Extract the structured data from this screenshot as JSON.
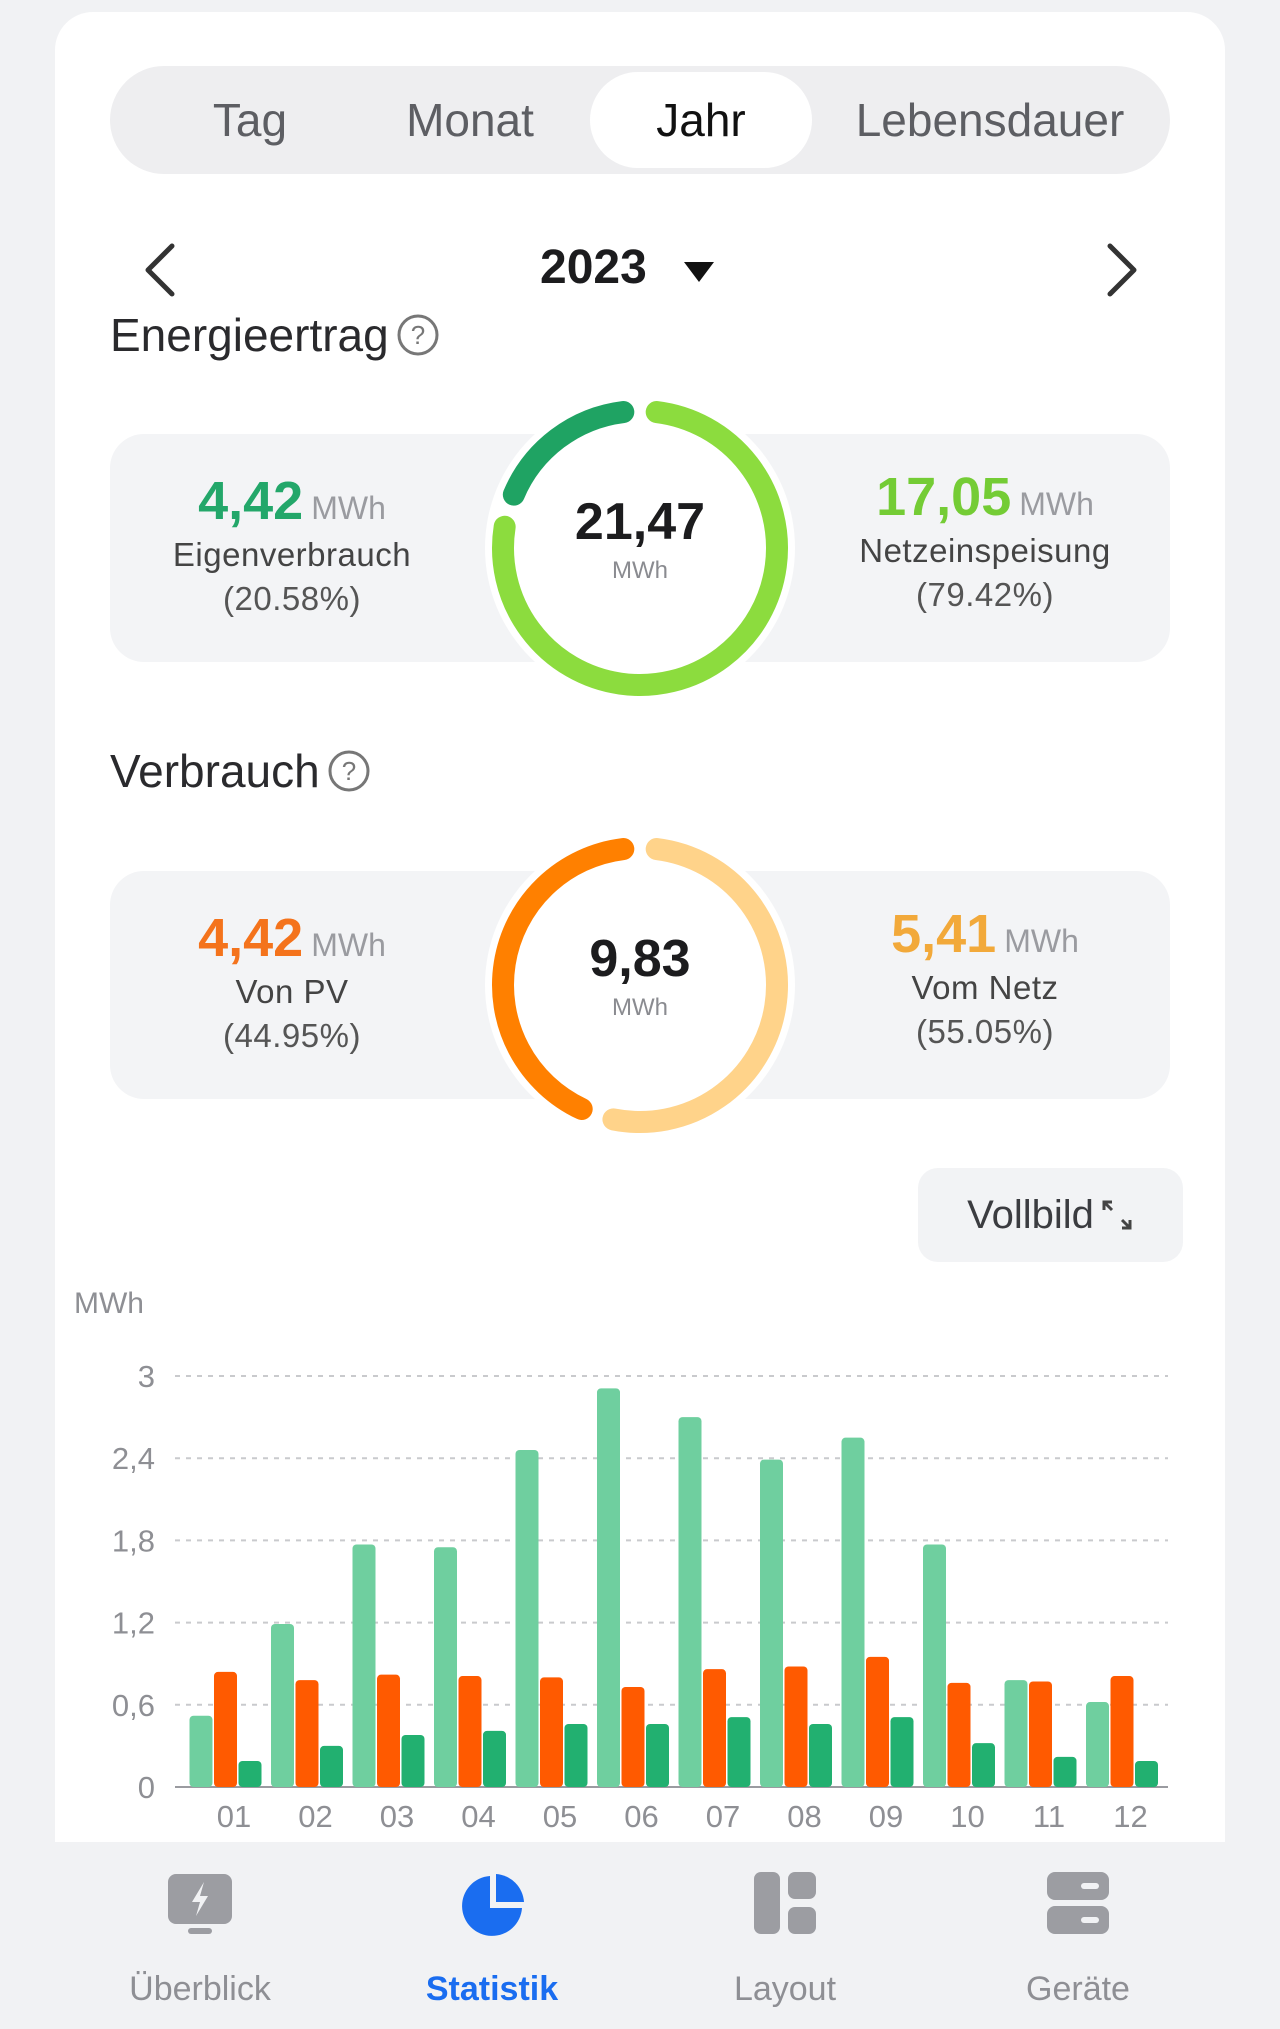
{
  "tabs": [
    {
      "label": "Tag",
      "active": false
    },
    {
      "label": "Monat",
      "active": false
    },
    {
      "label": "Jahr",
      "active": true
    },
    {
      "label": "Lebensdauer",
      "active": false
    }
  ],
  "period": {
    "year": "2023"
  },
  "energy_yield": {
    "title": "Energieertrag",
    "total": "21,47",
    "total_unit": "MWh",
    "left": {
      "value": "4,42",
      "unit": "MWh",
      "label": "Eigenverbrauch",
      "percent": "(20.58%)",
      "color": "#23a76a"
    },
    "right": {
      "value": "17,05",
      "unit": "MWh",
      "label": "Netzeinspeisung",
      "percent": "(79.42%)",
      "color": "#74cc35"
    },
    "share_left": 0.2058
  },
  "consumption": {
    "title": "Verbrauch",
    "total": "9,83",
    "total_unit": "MWh",
    "left": {
      "value": "4,42",
      "unit": "MWh",
      "label": "Von PV",
      "percent": "(44.95%)",
      "color": "#f4731c"
    },
    "right": {
      "value": "5,41",
      "unit": "MWh",
      "label": "Vom Netz",
      "percent": "(55.05%)",
      "color": "#f2a93a"
    },
    "share_left": 0.4495
  },
  "fullscreen_label": "Vollbild",
  "chart_data": {
    "type": "bar",
    "ylabel": "MWh",
    "ylim": [
      0,
      3
    ],
    "yticks": [
      "0",
      "0,6",
      "1,2",
      "1,8",
      "2,4",
      "3"
    ],
    "grid": true,
    "categories": [
      "01",
      "02",
      "03",
      "04",
      "05",
      "06",
      "07",
      "08",
      "09",
      "10",
      "11",
      "12"
    ],
    "series": [
      {
        "color": "#6fcf9f",
        "values": [
          0.52,
          1.19,
          1.77,
          1.75,
          2.46,
          2.91,
          2.7,
          2.39,
          2.55,
          1.77,
          0.78,
          0.62
        ]
      },
      {
        "color": "#ff5a00",
        "values": [
          0.84,
          0.78,
          0.82,
          0.81,
          0.8,
          0.73,
          0.86,
          0.88,
          0.95,
          0.76,
          0.77,
          0.81
        ]
      },
      {
        "color": "#22b070",
        "values": [
          0.19,
          0.3,
          0.38,
          0.41,
          0.46,
          0.46,
          0.51,
          0.46,
          0.51,
          0.32,
          0.22,
          0.19
        ]
      }
    ]
  },
  "bottom_nav": [
    {
      "label": "Überblick",
      "icon": "tablet-bolt-icon",
      "active": false
    },
    {
      "label": "Statistik",
      "icon": "pie-chart-icon",
      "active": true
    },
    {
      "label": "Layout",
      "icon": "layout-grid-icon",
      "active": false
    },
    {
      "label": "Geräte",
      "icon": "devices-stack-icon",
      "active": false
    }
  ],
  "colors": {
    "accent": "#1a6df0"
  }
}
